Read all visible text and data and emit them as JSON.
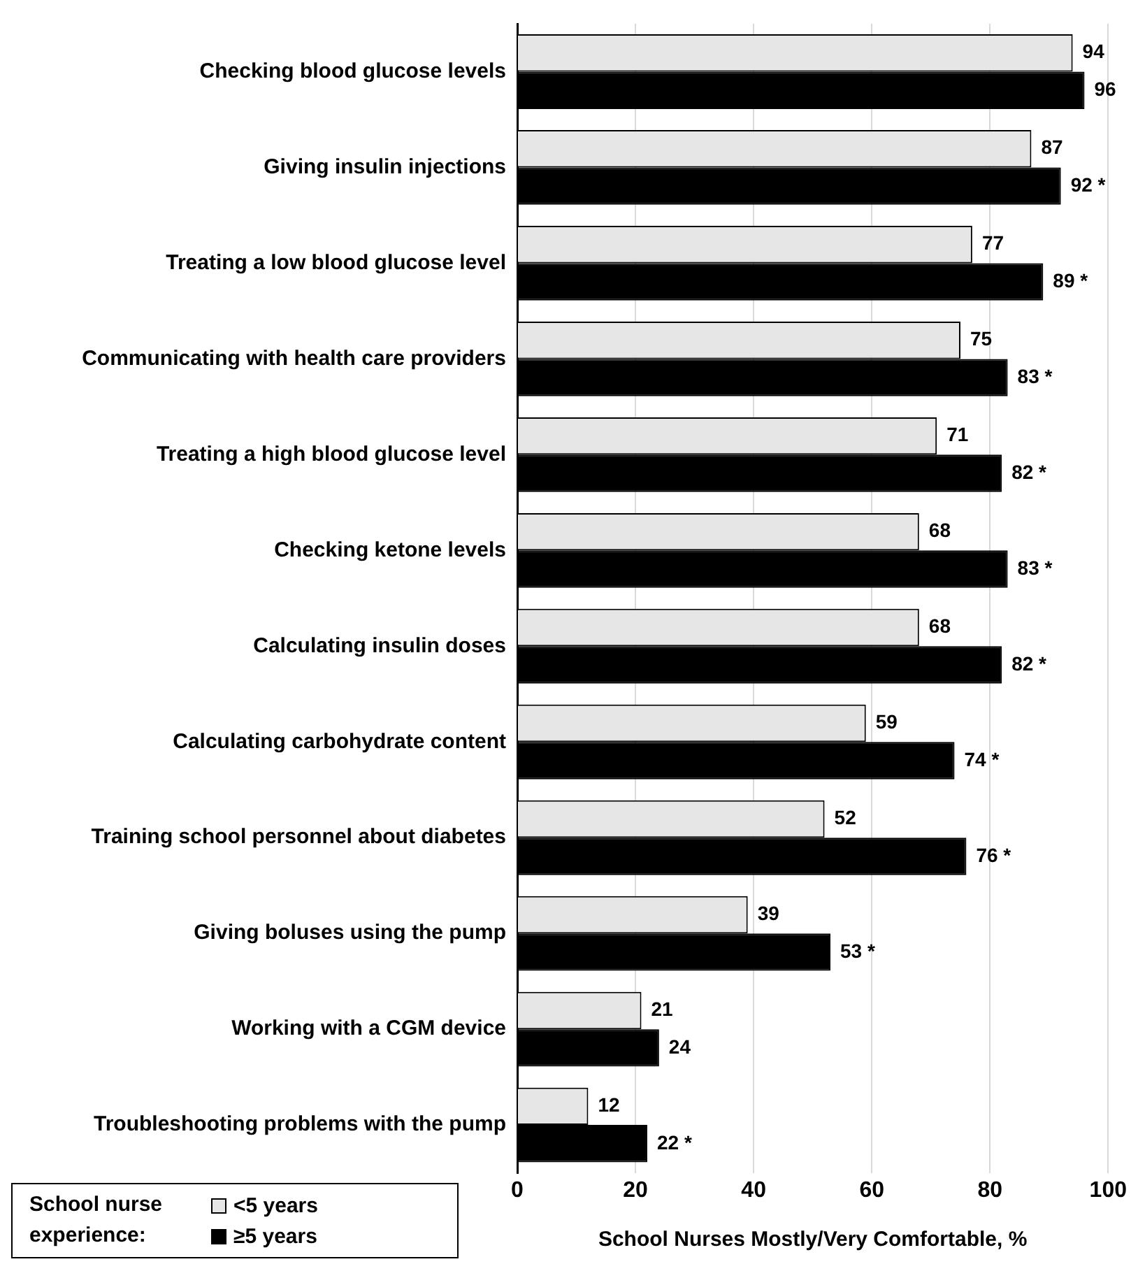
{
  "chart_data": {
    "type": "bar",
    "orientation": "horizontal",
    "xlabel": "School Nurses Mostly/Very Comfortable, %",
    "legend_title": "School nurse experience:",
    "legend": "bottom left",
    "grid": "x",
    "categories": [
      "Checking blood glucose levels",
      "Giving insulin injections",
      "Treating a low blood glucose level",
      "Communicating with health care providers",
      "Treating a high blood glucose level",
      "Checking ketone levels",
      "Calculating insulin doses",
      "Calculating carbohydrate content",
      "Training school personnel about diabetes",
      "Giving boluses using the pump",
      "Working with a CGM device",
      "Troubleshooting problems with the pump"
    ],
    "xlim": [
      0,
      100
    ],
    "xticks": [
      0,
      20,
      40,
      60,
      80,
      100
    ],
    "series": [
      {
        "name": "<5 years",
        "color": "#e6e6e6",
        "values": [
          94,
          87,
          77,
          75,
          71,
          68,
          68,
          59,
          52,
          39,
          21,
          12
        ],
        "value_labels": [
          "94",
          "87",
          "77",
          "75",
          "71",
          "68",
          "68",
          "59",
          "52",
          "39",
          "21",
          "12"
        ]
      },
      {
        "name": "≥5 years",
        "color": "#000000",
        "values": [
          96,
          92,
          89,
          83,
          82,
          83,
          82,
          74,
          76,
          53,
          24,
          22
        ],
        "value_labels": [
          "96",
          "92 *",
          "89 *",
          "83 *",
          "82 *",
          "83 *",
          "82 *",
          "74 *",
          "76 *",
          "53 *",
          "24",
          "22 *"
        ]
      }
    ]
  }
}
